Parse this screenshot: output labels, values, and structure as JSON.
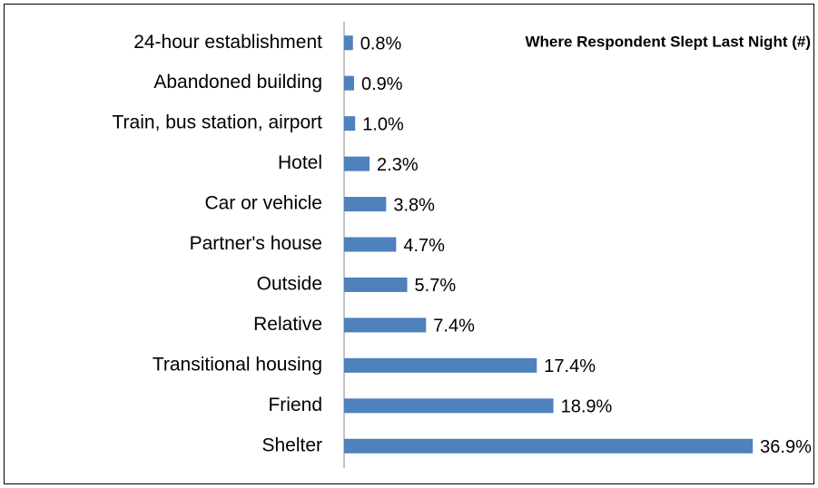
{
  "chart_data": {
    "type": "bar",
    "orientation": "horizontal",
    "title": "Where Respondent Slept Last Night (#)",
    "categories": [
      "24-hour establishment",
      "Abandoned building",
      "Train, bus station, airport",
      "Hotel",
      "Car or vehicle",
      "Partner's house",
      "Outside",
      "Relative",
      "Transitional housing",
      "Friend",
      "Shelter"
    ],
    "values": [
      0.8,
      0.9,
      1.0,
      2.3,
      3.8,
      4.7,
      5.7,
      7.4,
      17.4,
      18.9,
      36.9
    ],
    "value_labels": [
      "0.8%",
      "0.9%",
      "1.0%",
      "2.3%",
      "3.8%",
      "4.7%",
      "5.7%",
      "7.4%",
      "17.4%",
      "18.9%",
      "36.9%"
    ],
    "color": "#4f81bd",
    "xlim": [
      0,
      40
    ]
  }
}
